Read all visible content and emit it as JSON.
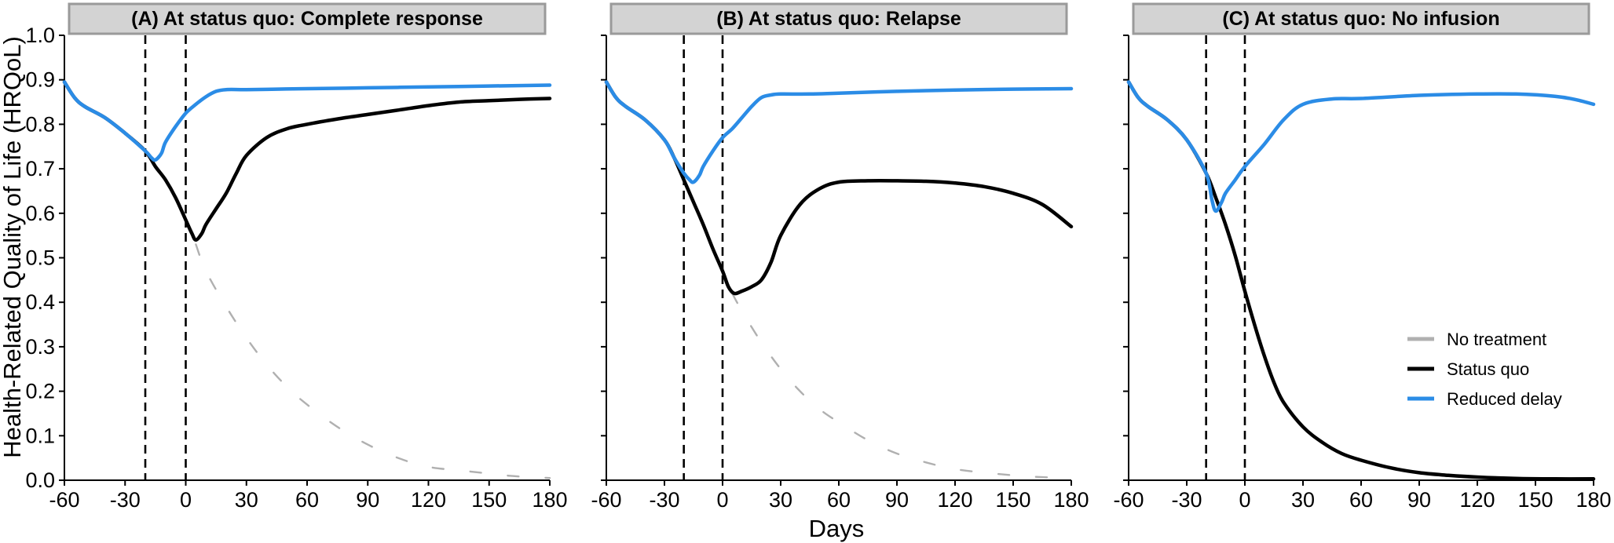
{
  "figure": {
    "xlabel": "Days",
    "ylabel": "Health-Related Quality of Life (HRQoL)"
  },
  "legend": {
    "placement": "right, inside panel C",
    "items": [
      {
        "label": "No treatment",
        "color": "#b0b0b0"
      },
      {
        "label": "Status quo",
        "color": "#000000"
      },
      {
        "label": "Reduced delay",
        "color": "#2b8ce6"
      }
    ]
  },
  "chart_data": [
    {
      "type": "line",
      "title": "(A) At status quo: Complete response",
      "xlim": [
        -60,
        180
      ],
      "ylim": [
        0,
        1
      ],
      "xticks": [
        "-60",
        "-30",
        "0",
        "30",
        "60",
        "90",
        "120",
        "150",
        "180"
      ],
      "yticks": [
        "0.0",
        "0.1",
        "0.2",
        "0.3",
        "0.4",
        "0.5",
        "0.6",
        "0.7",
        "0.8",
        "0.9",
        "1.0"
      ],
      "vlines": [
        -20,
        0
      ],
      "series": [
        {
          "name": "No treatment",
          "style": "dashed",
          "color": "#b0b0b0",
          "x": [
            5,
            10,
            20,
            30,
            40,
            50,
            60,
            75,
            90,
            105,
            120,
            140,
            160,
            180
          ],
          "y": [
            0.53,
            0.47,
            0.39,
            0.32,
            0.26,
            0.21,
            0.17,
            0.12,
            0.08,
            0.05,
            0.03,
            0.02,
            0.01,
            0.005
          ]
        },
        {
          "name": "Status quo",
          "style": "solid",
          "color": "#000000",
          "x": [
            -60,
            -55,
            -50,
            -40,
            -30,
            -20,
            -15,
            -10,
            -5,
            0,
            3,
            5,
            8,
            10,
            15,
            20,
            25,
            30,
            40,
            50,
            60,
            75,
            90,
            105,
            120,
            135,
            150,
            165,
            180
          ],
          "y": [
            0.895,
            0.86,
            0.84,
            0.815,
            0.78,
            0.74,
            0.705,
            0.675,
            0.635,
            0.585,
            0.555,
            0.54,
            0.555,
            0.575,
            0.61,
            0.645,
            0.69,
            0.73,
            0.77,
            0.79,
            0.8,
            0.812,
            0.822,
            0.832,
            0.842,
            0.85,
            0.853,
            0.856,
            0.858
          ]
        },
        {
          "name": "Reduced delay",
          "style": "solid",
          "color": "#2b8ce6",
          "x": [
            -60,
            -55,
            -50,
            -40,
            -30,
            -20,
            -17,
            -15,
            -12,
            -10,
            -5,
            0,
            5,
            10,
            15,
            20,
            30,
            45,
            60,
            90,
            120,
            150,
            180
          ],
          "y": [
            0.895,
            0.86,
            0.84,
            0.815,
            0.78,
            0.74,
            0.725,
            0.72,
            0.735,
            0.76,
            0.795,
            0.825,
            0.845,
            0.862,
            0.874,
            0.878,
            0.878,
            0.879,
            0.88,
            0.882,
            0.884,
            0.886,
            0.888
          ]
        }
      ]
    },
    {
      "type": "line",
      "title": "(B) At status quo: Relapse",
      "xlim": [
        -60,
        180
      ],
      "ylim": [
        0,
        1
      ],
      "xticks": [
        "-60",
        "-30",
        "0",
        "30",
        "60",
        "90",
        "120",
        "150",
        "180"
      ],
      "yticks": [
        "0.0",
        "0.1",
        "0.2",
        "0.3",
        "0.4",
        "0.5",
        "0.6",
        "0.7",
        "0.8",
        "0.9",
        "1.0"
      ],
      "vlines": [
        -20,
        0
      ],
      "series": [
        {
          "name": "No treatment",
          "style": "dashed",
          "color": "#b0b0b0",
          "x": [
            5,
            10,
            20,
            30,
            40,
            50,
            60,
            75,
            90,
            105,
            120,
            140,
            160,
            180
          ],
          "y": [
            0.42,
            0.38,
            0.31,
            0.25,
            0.2,
            0.16,
            0.13,
            0.09,
            0.06,
            0.04,
            0.025,
            0.015,
            0.008,
            0.005
          ]
        },
        {
          "name": "Status quo",
          "style": "solid",
          "color": "#000000",
          "x": [
            -60,
            -55,
            -50,
            -40,
            -30,
            -25,
            -20,
            -15,
            -10,
            -5,
            0,
            3,
            6,
            10,
            15,
            20,
            25,
            30,
            40,
            50,
            60,
            75,
            90,
            105,
            120,
            135,
            150,
            165,
            180
          ],
          "y": [
            0.895,
            0.86,
            0.84,
            0.81,
            0.765,
            0.725,
            0.675,
            0.625,
            0.575,
            0.52,
            0.47,
            0.435,
            0.42,
            0.425,
            0.435,
            0.45,
            0.49,
            0.55,
            0.62,
            0.655,
            0.67,
            0.673,
            0.673,
            0.672,
            0.668,
            0.66,
            0.645,
            0.62,
            0.57
          ]
        },
        {
          "name": "Reduced delay",
          "style": "solid",
          "color": "#2b8ce6",
          "x": [
            -60,
            -55,
            -50,
            -40,
            -30,
            -25,
            -20,
            -17,
            -15,
            -12,
            -10,
            -5,
            0,
            5,
            10,
            15,
            20,
            25,
            30,
            45,
            60,
            90,
            120,
            150,
            180
          ],
          "y": [
            0.895,
            0.86,
            0.84,
            0.81,
            0.765,
            0.725,
            0.69,
            0.675,
            0.67,
            0.685,
            0.705,
            0.74,
            0.77,
            0.79,
            0.815,
            0.84,
            0.86,
            0.866,
            0.868,
            0.868,
            0.87,
            0.874,
            0.877,
            0.879,
            0.88
          ]
        }
      ]
    },
    {
      "type": "line",
      "title": "(C) At status quo: No infusion",
      "xlim": [
        -60,
        180
      ],
      "ylim": [
        0,
        1
      ],
      "xticks": [
        "-60",
        "-30",
        "0",
        "30",
        "60",
        "90",
        "120",
        "150",
        "180"
      ],
      "yticks": [
        "0.0",
        "0.1",
        "0.2",
        "0.3",
        "0.4",
        "0.5",
        "0.6",
        "0.7",
        "0.8",
        "0.9",
        "1.0"
      ],
      "vlines": [
        -20,
        0
      ],
      "series": [
        {
          "name": "No treatment",
          "style": "dashed",
          "color": "#b0b0b0",
          "x": [
            -60,
            -55,
            -50,
            -40,
            -30,
            -20,
            -15,
            -10,
            -5,
            0,
            5,
            10,
            15,
            20,
            30,
            40,
            50,
            60,
            75,
            90,
            105,
            120,
            140,
            160,
            180
          ],
          "y": [
            0.895,
            0.86,
            0.84,
            0.81,
            0.765,
            0.69,
            0.635,
            0.575,
            0.505,
            0.425,
            0.35,
            0.28,
            0.22,
            0.175,
            0.12,
            0.085,
            0.06,
            0.045,
            0.028,
            0.017,
            0.011,
            0.007,
            0.004,
            0.003,
            0.003
          ]
        },
        {
          "name": "Status quo",
          "style": "solid",
          "color": "#000000",
          "x": [
            -60,
            -55,
            -50,
            -40,
            -30,
            -20,
            -15,
            -10,
            -5,
            0,
            5,
            10,
            15,
            20,
            30,
            40,
            50,
            60,
            75,
            90,
            105,
            120,
            140,
            160,
            180
          ],
          "y": [
            0.895,
            0.86,
            0.84,
            0.81,
            0.765,
            0.69,
            0.635,
            0.575,
            0.505,
            0.425,
            0.35,
            0.28,
            0.22,
            0.175,
            0.12,
            0.085,
            0.06,
            0.045,
            0.028,
            0.017,
            0.011,
            0.007,
            0.004,
            0.003,
            0.003
          ]
        },
        {
          "name": "Reduced delay",
          "style": "solid",
          "color": "#2b8ce6",
          "x": [
            -60,
            -55,
            -50,
            -40,
            -30,
            -20,
            -17,
            -15,
            -12,
            -10,
            -5,
            0,
            10,
            20,
            30,
            45,
            60,
            90,
            120,
            140,
            160,
            170,
            180
          ],
          "y": [
            0.895,
            0.86,
            0.84,
            0.81,
            0.765,
            0.69,
            0.63,
            0.605,
            0.625,
            0.645,
            0.675,
            0.705,
            0.755,
            0.81,
            0.845,
            0.857,
            0.858,
            0.865,
            0.868,
            0.868,
            0.863,
            0.856,
            0.845
          ]
        }
      ]
    }
  ]
}
